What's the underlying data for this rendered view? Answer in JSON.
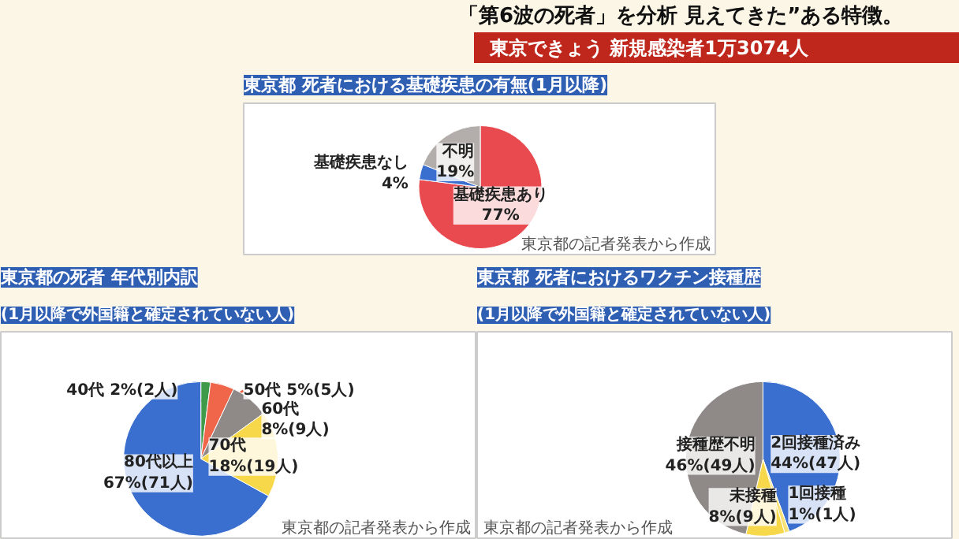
{
  "chart_data": [
    {
      "type": "pie",
      "title": "東京都 死者における基礎疾患の有無(1月以降)",
      "categories": [
        "基礎疾患あり",
        "基礎疾患なし",
        "不明"
      ],
      "values": [
        77,
        4,
        19
      ],
      "value_labels": [
        "77%",
        "4%",
        "19%"
      ],
      "colors": [
        "#e84a4f",
        "#3a6fd0",
        "#b3aeab"
      ],
      "annotations": [
        "「第6波の死者」を分析 見えてきた”ある特徴。",
        "東京できょう 新規感染者1万3074人",
        "東京都の記者発表から作成"
      ]
    },
    {
      "type": "pie",
      "title": "東京都の死者 年代別内訳",
      "subtitle": "(1月以降で外国籍と確定されていない人)",
      "categories": [
        "40代",
        "50代",
        "60代",
        "70代",
        "80代以上"
      ],
      "values": [
        2,
        5,
        8,
        18,
        67
      ],
      "value_labels": [
        "2%(2人)",
        "5%(5人)",
        "8%(9人)",
        "18%(19人)",
        "67%(71人)"
      ],
      "colors": [
        "#3f9a4a",
        "#f0664a",
        "#8f8a88",
        "#f7d84a",
        "#3a6fd0"
      ],
      "annotations": [
        "東京都の記者発表から作成"
      ]
    },
    {
      "type": "pie",
      "title": "東京都 死者におけるワクチン接種歴",
      "subtitle": "(1月以降で外国籍と確定されていない人)",
      "categories": [
        "2回接種済み",
        "1回接種",
        "未接種",
        "接種歴不明"
      ],
      "values": [
        44,
        1,
        8,
        46
      ],
      "value_labels": [
        "44%(47人)",
        "1%(1人)",
        "8%(9人)",
        "46%(49人)"
      ],
      "colors": [
        "#3a6fd0",
        "#f7e27a",
        "#f7d84a",
        "#8f8a88"
      ],
      "annotations": [
        "東京都の記者発表から作成"
      ]
    }
  ]
}
